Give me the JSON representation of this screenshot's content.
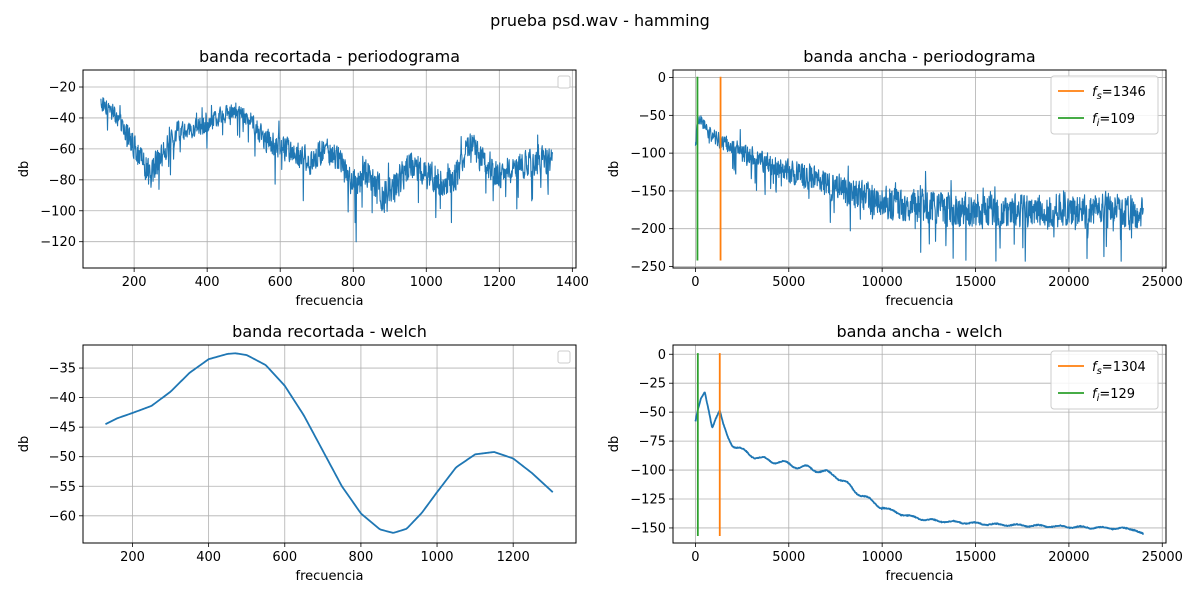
{
  "figure": {
    "suptitle": "prueba psd.wav - hamming"
  },
  "chart_data": [
    {
      "type": "line",
      "title": "banda recortada - periodograma",
      "xlabel": "frecuencia",
      "ylabel": "db",
      "xlim": [
        60,
        1410
      ],
      "ylim": [
        -137,
        -9
      ],
      "xticks": [
        200,
        400,
        600,
        800,
        1000,
        1200,
        1400
      ],
      "yticks": [
        -120,
        -100,
        -80,
        -60,
        -40,
        -20
      ],
      "grid": true,
      "legend": {
        "position": "upper right",
        "entries": []
      },
      "series": [
        {
          "color": "#1f77b4",
          "style": "noisy",
          "x": [
            109,
            130,
            160,
            200,
            240,
            280,
            320,
            360,
            400,
            440,
            480,
            520,
            560,
            600,
            640,
            680,
            720,
            760,
            800,
            840,
            880,
            920,
            960,
            1000,
            1040,
            1080,
            1120,
            1160,
            1200,
            1240,
            1280,
            1320,
            1346
          ],
          "y": [
            -30,
            -33,
            -42,
            -58,
            -78,
            -62,
            -48,
            -47,
            -45,
            -38,
            -34,
            -42,
            -55,
            -58,
            -63,
            -68,
            -61,
            -66,
            -84,
            -74,
            -92,
            -82,
            -70,
            -76,
            -82,
            -78,
            -56,
            -70,
            -78,
            -71,
            -70,
            -67,
            -70
          ],
          "min_y": -132,
          "max_y": -12
        }
      ]
    },
    {
      "type": "line",
      "title": "banda ancha - periodograma",
      "xlabel": "frecuencia",
      "ylabel": "db",
      "xlim": [
        -1200,
        25200
      ],
      "ylim": [
        -252,
        10
      ],
      "xticks": [
        0,
        5000,
        10000,
        15000,
        20000,
        25000
      ],
      "yticks": [
        -250,
        -200,
        -150,
        -100,
        -50,
        0
      ],
      "grid": true,
      "legend": {
        "position": "upper right"
      },
      "series": [
        {
          "color": "#1f77b4",
          "style": "noisy",
          "x": [
            0,
            100,
            300,
            700,
            1500,
            2500,
            4000,
            5000,
            6000,
            7000,
            8000,
            9000,
            10000,
            11000,
            12000,
            13000,
            14000,
            16000,
            18000,
            20000,
            22000,
            24000
          ],
          "y": [
            -90,
            -60,
            -55,
            -75,
            -85,
            -100,
            -115,
            -125,
            -130,
            -140,
            -150,
            -158,
            -165,
            -168,
            -170,
            -172,
            -175,
            -175,
            -176,
            -175,
            -175,
            -180
          ],
          "min_y": -243,
          "max_y": -25
        }
      ],
      "vlines": [
        {
          "name": "f_s=1346",
          "label_main": "f",
          "label_sub": "s",
          "label_value": "=1346",
          "x": 1346,
          "ymin": -242,
          "ymax": 1,
          "color": "#ff7f0e"
        },
        {
          "name": "f_i=109",
          "label_main": "f",
          "label_sub": "i",
          "label_value": "=109",
          "x": 109,
          "ymin": -242,
          "ymax": 1,
          "color": "#2ca02c"
        }
      ]
    },
    {
      "type": "line",
      "title": "banda recortada - welch",
      "xlabel": "frecuencia",
      "ylabel": "db",
      "xlim": [
        70,
        1365
      ],
      "ylim": [
        -64.6,
        -31.1
      ],
      "xticks": [
        200,
        400,
        600,
        800,
        1000,
        1200
      ],
      "yticks": [
        -60,
        -55,
        -50,
        -45,
        -40,
        -35
      ],
      "grid": true,
      "legend": {
        "position": "upper right",
        "entries": []
      },
      "series": [
        {
          "color": "#1f77b4",
          "style": "smooth",
          "x": [
            129,
            160,
            200,
            250,
            300,
            350,
            400,
            450,
            470,
            500,
            550,
            600,
            650,
            700,
            750,
            800,
            850,
            885,
            920,
            960,
            1000,
            1050,
            1100,
            1150,
            1200,
            1250,
            1304
          ],
          "y": [
            -44.5,
            -43.5,
            -42.6,
            -41.4,
            -39,
            -35.8,
            -33.5,
            -32.6,
            -32.5,
            -32.8,
            -34.5,
            -38,
            -43,
            -49,
            -55,
            -59.6,
            -62.3,
            -62.9,
            -62.2,
            -59.5,
            -56,
            -51.8,
            -49.6,
            -49.2,
            -50.3,
            -52.8,
            -56
          ]
        }
      ]
    },
    {
      "type": "line",
      "title": "banda ancha - welch",
      "xlabel": "frecuencia",
      "ylabel": "db",
      "xlim": [
        -1200,
        25200
      ],
      "ylim": [
        -163,
        8
      ],
      "xticks": [
        0,
        5000,
        10000,
        15000,
        20000,
        25000
      ],
      "yticks": [
        -150,
        -125,
        -100,
        -75,
        -50,
        -25,
        0
      ],
      "grid": true,
      "legend": {
        "position": "upper right"
      },
      "series": [
        {
          "color": "#1f77b4",
          "style": "wavy",
          "x": [
            0,
            150,
            300,
            500,
            750,
            900,
            1100,
            1300,
            1500,
            1700,
            2000,
            2500,
            3000,
            3500,
            4000,
            4500,
            5000,
            5500,
            6000,
            6500,
            7000,
            7500,
            8000,
            8500,
            9000,
            9500,
            10000,
            10500,
            11000,
            11500,
            12000,
            13000,
            14000,
            15000,
            16000,
            18000,
            20000,
            22000,
            23500,
            24000
          ],
          "y": [
            -58,
            -48,
            -40,
            -33,
            -50,
            -62,
            -55,
            -50,
            -62,
            -70,
            -78,
            -83,
            -87,
            -90,
            -92,
            -93,
            -95,
            -97,
            -98,
            -100,
            -102,
            -105,
            -110,
            -118,
            -122,
            -128,
            -132,
            -135,
            -138,
            -140,
            -142,
            -144,
            -145,
            -146,
            -147,
            -148,
            -149,
            -150,
            -151,
            -156
          ]
        }
      ],
      "vlines": [
        {
          "name": "f_s=1304",
          "label_main": "f",
          "label_sub": "s",
          "label_value": "=1304",
          "x": 1304,
          "ymin": -157,
          "ymax": 1,
          "color": "#ff7f0e"
        },
        {
          "name": "f_i=129",
          "label_main": "f",
          "label_sub": "i",
          "label_value": "=129",
          "x": 129,
          "ymin": -157,
          "ymax": 1,
          "color": "#2ca02c"
        }
      ]
    }
  ]
}
